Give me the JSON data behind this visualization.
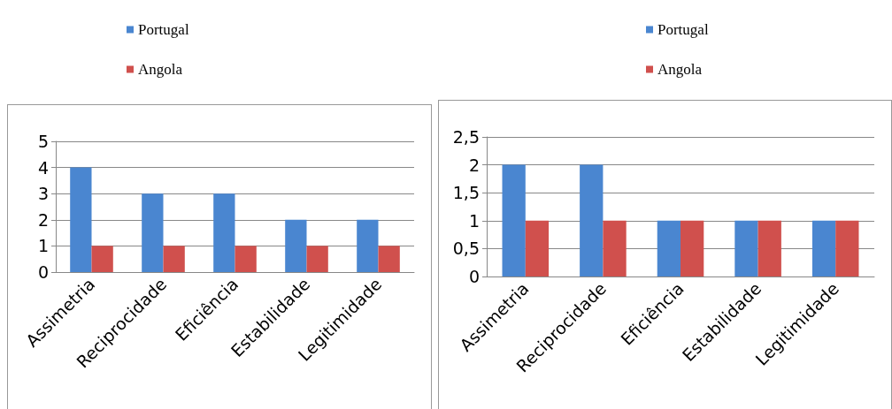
{
  "chart_data": [
    {
      "type": "bar",
      "categories": [
        "Assimetria",
        "Reciprocidade",
        "Eficiência",
        "Estabilidade",
        "Legitimidade"
      ],
      "series": [
        {
          "name": "Portugal",
          "color": "#4a86d0",
          "values": [
            4,
            3,
            3,
            2,
            2
          ]
        },
        {
          "name": "Angola",
          "color": "#d0504d",
          "values": [
            1,
            1,
            1,
            1,
            1
          ]
        }
      ],
      "ylim": [
        0,
        5
      ],
      "yticks": [
        0,
        1,
        2,
        3,
        4,
        5
      ],
      "grid": "y",
      "legend": "top left"
    },
    {
      "type": "bar",
      "categories": [
        "Assimetria",
        "Reciprocidade",
        "Eficiência",
        "Estabilidade",
        "Legitimidade"
      ],
      "series": [
        {
          "name": "Portugal",
          "color": "#4a86d0",
          "values": [
            2,
            2,
            1,
            1,
            1
          ]
        },
        {
          "name": "Angola",
          "color": "#d0504d",
          "values": [
            1,
            1,
            1,
            1,
            1
          ]
        }
      ],
      "ylim": [
        0,
        2.5
      ],
      "yticks": [
        0,
        {
          "value": 0.5,
          "label": "0,5"
        },
        1,
        {
          "value": 1.5,
          "label": "1,5"
        },
        2,
        {
          "value": 2.5,
          "label": "2,5"
        }
      ],
      "grid": "y",
      "legend": "top left"
    }
  ]
}
